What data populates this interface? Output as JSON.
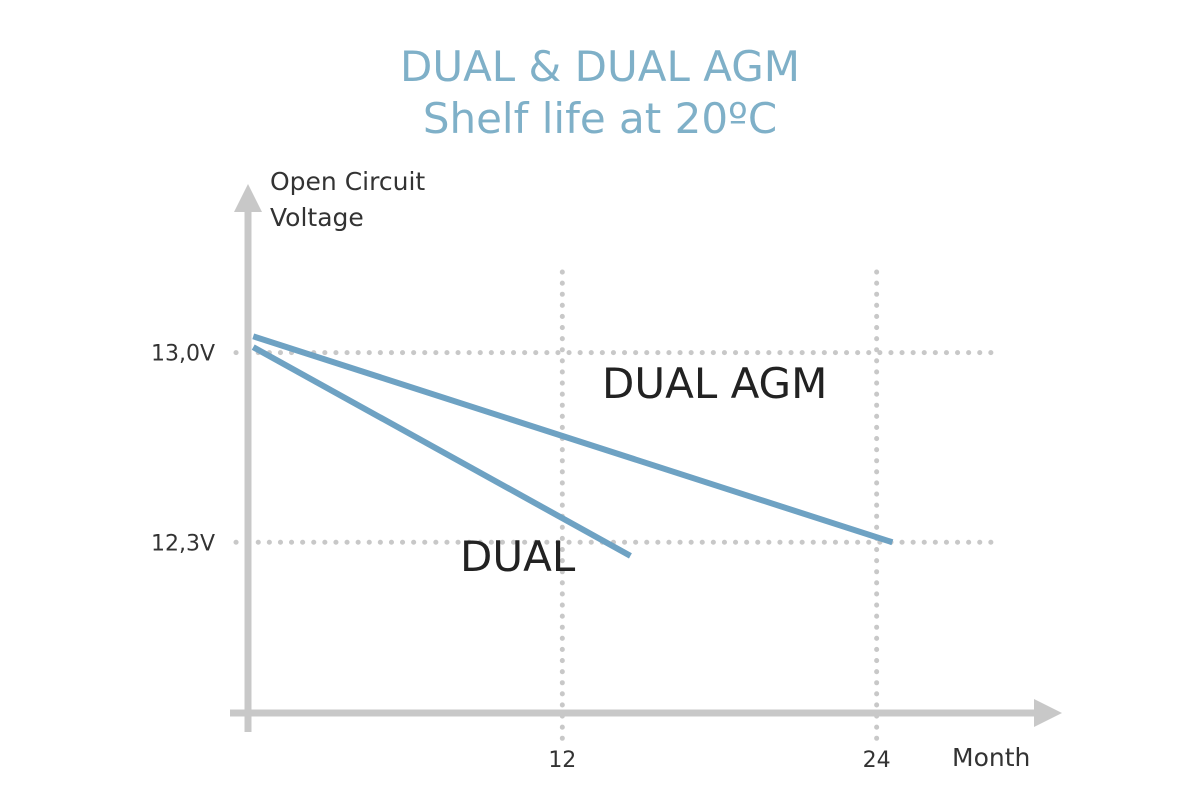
{
  "chart_data": {
    "type": "line",
    "title": "DUAL & DUAL AGM",
    "subtitle": "Shelf life at 20ºC",
    "ylabel_lines": [
      "Open Circuit",
      "Voltage"
    ],
    "xlabel": "Month",
    "x_ticks": [
      12,
      24
    ],
    "x_tick_labels": [
      "12",
      "24"
    ],
    "y_ticks": [
      13.0,
      12.3
    ],
    "y_tick_labels": [
      "13,0V",
      "12,3V"
    ],
    "xlim": [
      0,
      31
    ],
    "ylim": [
      11.67,
      13.6
    ],
    "grid": "dotted",
    "series": [
      {
        "name": "DUAL AGM",
        "color": "#6ea2c3",
        "x": [
          0.2,
          24.6
        ],
        "y": [
          13.06,
          12.3
        ]
      },
      {
        "name": "DUAL",
        "color": "#6ea2c3",
        "x": [
          0.2,
          14.6
        ],
        "y": [
          13.02,
          12.25
        ]
      }
    ]
  }
}
